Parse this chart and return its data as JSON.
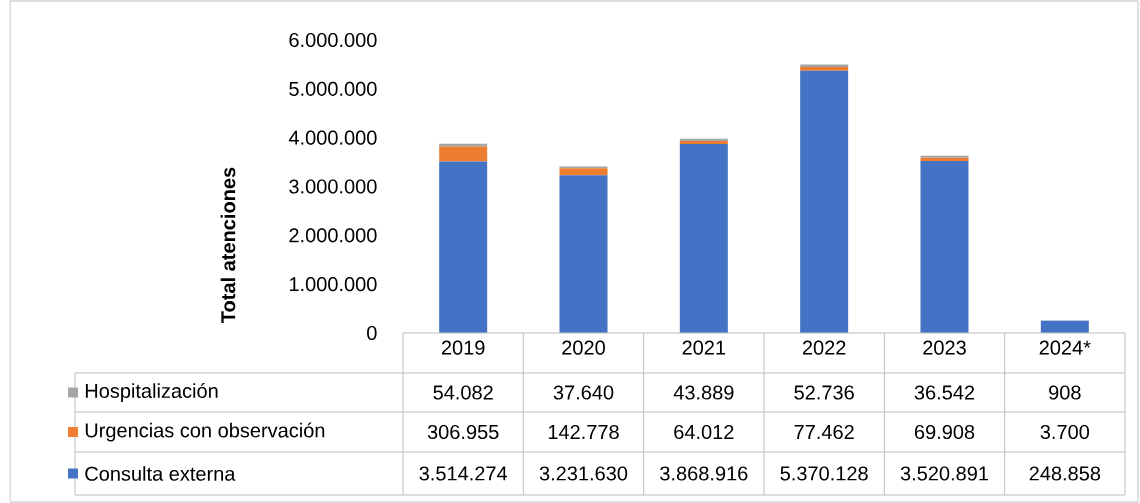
{
  "chart_data": {
    "type": "bar",
    "stacked": true,
    "ylabel": "Total atenciones",
    "categories": [
      "2019",
      "2020",
      "2021",
      "2022",
      "2023",
      "2024*"
    ],
    "ylim": [
      0,
      6000000
    ],
    "yticks": [
      0,
      {
        "value": 1000000,
        "label": "1.000.000"
      },
      {
        "value": 2000000,
        "label": "2.000.000"
      },
      {
        "value": 3000000,
        "label": "3.000.000"
      },
      {
        "value": 4000000,
        "label": "4.000.000"
      },
      {
        "value": 5000000,
        "label": "5.000.000"
      },
      {
        "value": 6000000,
        "label": "6.000.000"
      }
    ],
    "legend": "bottom",
    "grid": false,
    "series": [
      {
        "name": "Consulta externa",
        "color": "#4472c4",
        "values": [
          3514274,
          3231630,
          3868916,
          5370128,
          3520891,
          248858
        ],
        "value_labels": [
          "3.514.274",
          "3.231.630",
          "3.868.916",
          "5.370.128",
          "3.520.891",
          "248.858"
        ]
      },
      {
        "name": "Urgencias con observación",
        "color": "#ed7d31",
        "values": [
          306955,
          142778,
          64012,
          77462,
          69908,
          3700
        ],
        "value_labels": [
          "306.955",
          "142.778",
          "64.012",
          "77.462",
          "69.908",
          "3.700"
        ]
      },
      {
        "name": "Hospitalización",
        "color": "#a5a5a5",
        "values": [
          54082,
          37640,
          43889,
          52736,
          36542,
          908
        ],
        "value_labels": [
          "54.082",
          "37.640",
          "43.889",
          "52.736",
          "36.542",
          "908"
        ]
      }
    ]
  }
}
